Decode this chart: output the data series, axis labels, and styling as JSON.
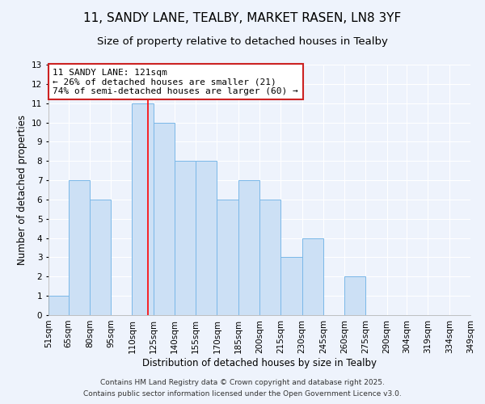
{
  "title": "11, SANDY LANE, TEALBY, MARKET RASEN, LN8 3YF",
  "subtitle": "Size of property relative to detached houses in Tealby",
  "xlabel": "Distribution of detached houses by size in Tealby",
  "ylabel": "Number of detached properties",
  "bin_edges": [
    51,
    65,
    80,
    95,
    110,
    125,
    140,
    155,
    170,
    185,
    200,
    215,
    230,
    245,
    260,
    275,
    290,
    304,
    319,
    334,
    349
  ],
  "bar_heights": [
    1,
    7,
    6,
    0,
    11,
    10,
    8,
    8,
    6,
    7,
    6,
    3,
    4,
    0,
    2,
    0,
    0,
    0,
    0,
    0
  ],
  "bar_color": "#cce0f5",
  "bar_edge_color": "#7ab8e8",
  "bar_edge_width": 0.7,
  "redline_x": 121,
  "ylim": [
    0,
    13
  ],
  "yticks": [
    0,
    1,
    2,
    3,
    4,
    5,
    6,
    7,
    8,
    9,
    10,
    11,
    12,
    13
  ],
  "annotation_title": "11 SANDY LANE: 121sqm",
  "annotation_line1": "← 26% of detached houses are smaller (21)",
  "annotation_line2": "74% of semi-detached houses are larger (60) →",
  "footnote1": "Contains HM Land Registry data © Crown copyright and database right 2025.",
  "footnote2": "Contains public sector information licensed under the Open Government Licence v3.0.",
  "background_color": "#eef3fc",
  "grid_color": "#ffffff",
  "title_fontsize": 11,
  "subtitle_fontsize": 9.5,
  "axis_label_fontsize": 8.5,
  "tick_fontsize": 7.5,
  "annotation_fontsize": 8,
  "footnote_fontsize": 6.5
}
